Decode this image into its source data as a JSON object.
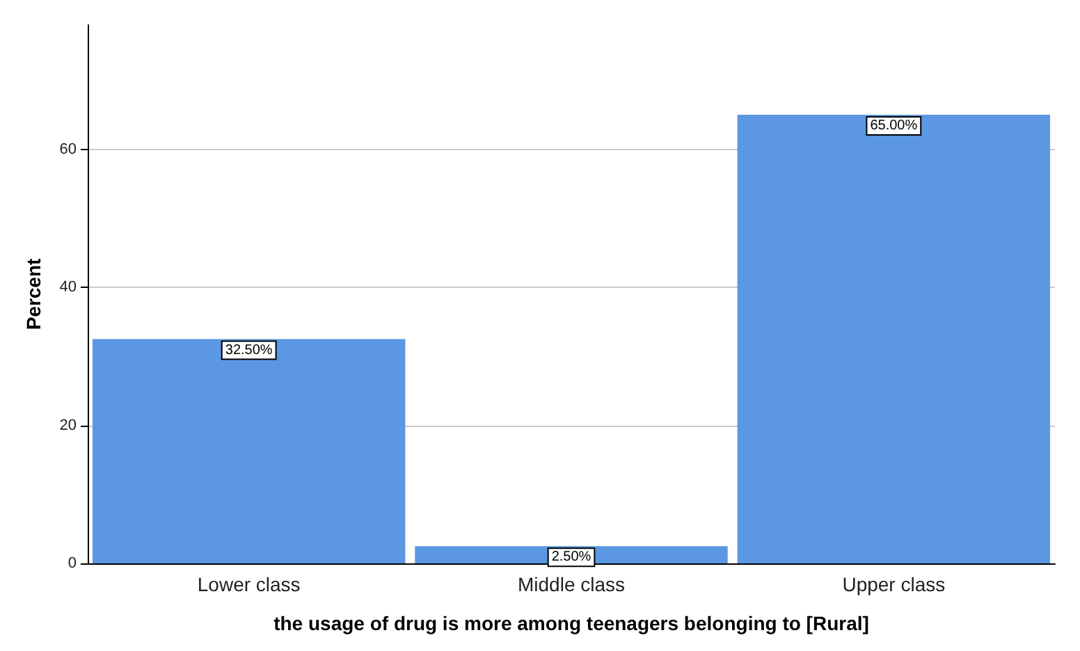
{
  "chart_data": {
    "type": "bar",
    "xlabel": "the usage of drug is more among teenagers belonging to [Rural]",
    "ylabel": "Percent",
    "categories": [
      "Lower class",
      "Middle class",
      "Upper class"
    ],
    "values": [
      32.5,
      2.5,
      65
    ],
    "color": "#5b97e3",
    "value_labels": [
      "32.50%",
      "2.50%",
      "65.00%"
    ],
    "ylim": [
      0,
      78
    ],
    "yticks": [
      0,
      20,
      40,
      60
    ],
    "grid": "y"
  }
}
